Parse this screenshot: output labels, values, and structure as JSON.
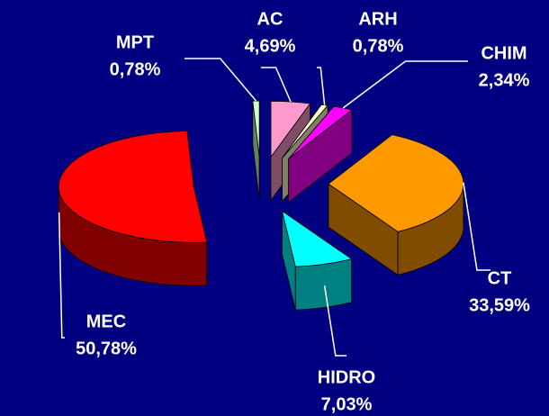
{
  "chart_data": {
    "type": "pie",
    "categories": [
      "AC",
      "ARH",
      "CHIM",
      "CT",
      "HIDRO",
      "MEC",
      "MPT"
    ],
    "values": [
      4.69,
      0.78,
      2.34,
      33.59,
      7.03,
      50.78,
      0.78
    ],
    "value_labels": [
      "4,69%",
      "0,78%",
      "2,34%",
      "33,59%",
      "7,03%",
      "50,78%",
      "0,78%"
    ],
    "colors": [
      "#ff99cc",
      "#ffffcc",
      "#ff00ff",
      "#ff9900",
      "#00ffff",
      "#ff0000",
      "#ccffcc"
    ]
  }
}
